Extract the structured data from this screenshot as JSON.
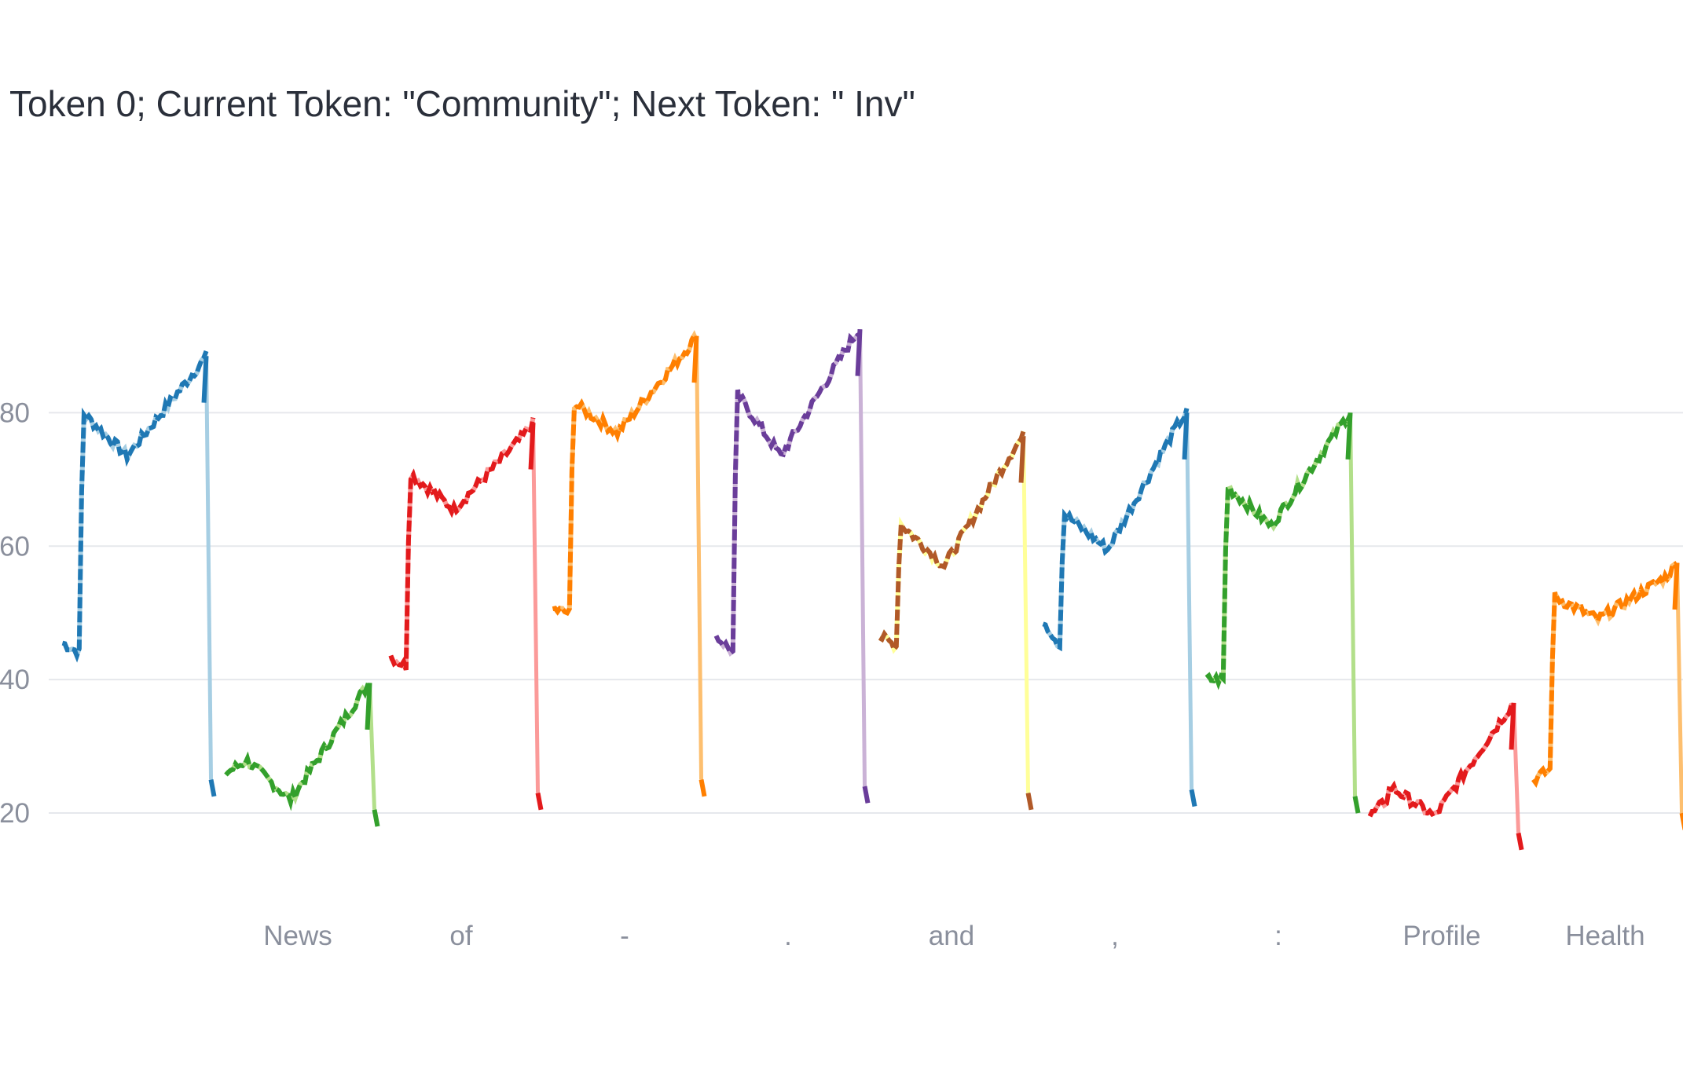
{
  "chart_data": {
    "type": "line",
    "title": "Token 0; Current Token: \"Community\"; Next Token: \" Inv\"",
    "xlabel": "",
    "ylabel": "",
    "xlim": [
      0,
      10
    ],
    "ylim": [
      10,
      103
    ],
    "yticks": [
      20,
      40,
      60,
      80
    ],
    "xticks": [
      {
        "label": "News",
        "x": 1.5
      },
      {
        "label": "of",
        "x": 2.5
      },
      {
        "label": "-",
        "x": 3.5
      },
      {
        "label": ".",
        "x": 4.5
      },
      {
        "label": "and",
        "x": 5.5
      },
      {
        "label": ",",
        "x": 6.5
      },
      {
        "label": ":",
        "x": 7.5
      },
      {
        "label": "Profile",
        "x": 8.5
      },
      {
        "label": "Health",
        "x": 9.5
      }
    ],
    "grid": true,
    "legend": "none",
    "series": [
      {
        "color": "#1f78b4",
        "light": "#a6cee3",
        "start": 45.5,
        "base": 44,
        "peak": 80,
        "dip": 73.5,
        "end": 88.5,
        "drop": 25
      },
      {
        "color": "#33a02c",
        "light": "#b2df8a",
        "start": 26,
        "base": 27.5,
        "peak": 28,
        "dip": 22,
        "end": 39.5,
        "drop": 20.5
      },
      {
        "color": "#e31a1c",
        "light": "#fb9a99",
        "start": 43.5,
        "base": 42,
        "peak": 71,
        "dip": 65.5,
        "end": 78.5,
        "drop": 23
      },
      {
        "color": "#ff7f00",
        "light": "#fdbf6f",
        "start": 50.5,
        "base": 50,
        "peak": 81.5,
        "dip": 77,
        "end": 91.5,
        "drop": 25
      },
      {
        "color": "#6a3d9a",
        "light": "#cab2d6",
        "start": 46.5,
        "base": 44,
        "peak": 83,
        "dip": 73.5,
        "end": 92.5,
        "drop": 24
      },
      {
        "color": "#b15928",
        "light": "#ffff99",
        "start": 46.5,
        "base": 45,
        "peak": 63.5,
        "dip": 57,
        "end": 76.5,
        "drop": 23
      },
      {
        "color": "#1f78b4",
        "light": "#a6cee3",
        "start": 49,
        "base": 45,
        "peak": 65,
        "dip": 59.5,
        "end": 80,
        "drop": 23.5
      },
      {
        "color": "#33a02c",
        "light": "#b2df8a",
        "start": 40,
        "base": 40,
        "peak": 69,
        "dip": 63,
        "end": 80,
        "drop": 22.5
      },
      {
        "color": "#e31a1c",
        "light": "#fb9a99",
        "start": 19.5,
        "base": 22,
        "peak": 24,
        "dip": 19.5,
        "end": 36.5,
        "drop": 17
      },
      {
        "color": "#ff7f00",
        "light": "#fdbf6f",
        "start": 25,
        "base": 26.5,
        "peak": 52.5,
        "dip": 49,
        "end": 57.5,
        "drop": 20
      }
    ]
  }
}
